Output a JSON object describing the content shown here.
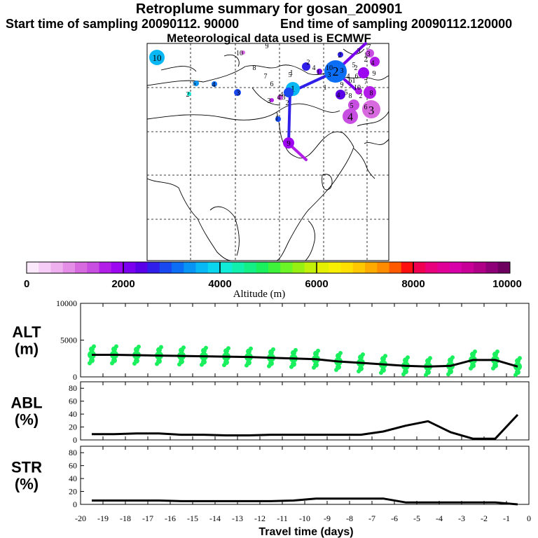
{
  "header": {
    "title": "Retroplume summary for gosan_200901",
    "start_label": "Start time of sampling 20090112. 90000",
    "end_label": "End time of sampling 20090112.120000",
    "met_label": "Meteorological data used is ECMWF"
  },
  "colorbar": {
    "label": "Altitude (m)",
    "ticks": [
      "0",
      "2000",
      "4000",
      "6000",
      "8000",
      "10000"
    ],
    "colors": [
      "#fbe8fb",
      "#f6cdf6",
      "#efb0ef",
      "#e58ee8",
      "#d86ae0",
      "#c74ee0",
      "#b21ee8",
      "#9d06f0",
      "#7c00f0",
      "#5a00e8",
      "#2f1fe8",
      "#1848f0",
      "#0c6ef5",
      "#0794f5",
      "#08b8f5",
      "#0ad6f0",
      "#10ecd8",
      "#12f0ae",
      "#14f086",
      "#1aef5e",
      "#3ef23c",
      "#6cf526",
      "#98f012",
      "#c2f008",
      "#e4f000",
      "#f8f000",
      "#ffe000",
      "#ffc800",
      "#ffaa00",
      "#ff8c00",
      "#ff5a00",
      "#ff1010",
      "#f00050",
      "#e8007c",
      "#e00098",
      "#d800a8",
      "#c80098",
      "#b00088",
      "#8e0078",
      "#6e0060"
    ]
  },
  "map": {
    "numbered_markers": [
      "10",
      "9",
      "8",
      "7",
      "6",
      "5",
      "4",
      "3",
      "2",
      "1"
    ],
    "labels": [
      "10",
      "9",
      "8",
      "7",
      "6",
      "5",
      "4",
      "3",
      "2",
      "1",
      "10",
      "9",
      "8",
      "7",
      "6",
      "5",
      "4",
      "3",
      "2",
      "1",
      "10",
      "9",
      "8",
      "7",
      "6",
      "5",
      "4",
      "3",
      "2",
      "1",
      "4",
      "3",
      "2",
      "1",
      "5",
      "4",
      "3",
      "2",
      "1",
      "4",
      "3",
      "2",
      "1",
      "6",
      "5",
      "4",
      "3",
      "2"
    ]
  },
  "chart_data": [
    {
      "type": "line",
      "name": "ALT",
      "ylabel": "ALT (m)",
      "ylabel_line1": "ALT",
      "ylabel_line2": "(m)",
      "ylim": [
        0,
        10000
      ],
      "yticks": [
        "0",
        "5000",
        "10000"
      ],
      "ytick_values": [
        0,
        5000,
        10000
      ],
      "x": [
        -19.5,
        -18.5,
        -17.5,
        -16.5,
        -15.5,
        -14.5,
        -13.5,
        -12.5,
        -11.5,
        -10.5,
        -9.5,
        -8.5,
        -7.5,
        -6.5,
        -5.5,
        -4.5,
        -3.5,
        -2.5,
        -1.5,
        -0.5
      ],
      "values": [
        3000,
        3000,
        2950,
        2900,
        2850,
        2800,
        2750,
        2700,
        2600,
        2500,
        2400,
        2100,
        1900,
        1700,
        1500,
        1400,
        1500,
        2300,
        2300,
        1400
      ],
      "scatter_color": "#1aef5e"
    },
    {
      "type": "line",
      "name": "ABL",
      "ylabel": "ABL (%)",
      "ylabel_line1": "ABL",
      "ylabel_line2": "(%)",
      "ylim": [
        0,
        90
      ],
      "yticks": [
        "0",
        "20",
        "40",
        "60",
        "80"
      ],
      "ytick_values": [
        0,
        20,
        40,
        60,
        80
      ],
      "x": [
        -19.5,
        -18.5,
        -17.5,
        -16.5,
        -15.5,
        -14.5,
        -13.5,
        -12.5,
        -11.5,
        -10.5,
        -9.5,
        -8.5,
        -7.5,
        -6.5,
        -5.5,
        -4.5,
        -3.5,
        -2.5,
        -1.5,
        -0.5
      ],
      "values": [
        9,
        9,
        10,
        10,
        8,
        8,
        7,
        7,
        8,
        8,
        8,
        8,
        8,
        13,
        22,
        29,
        12,
        2,
        2,
        39
      ]
    },
    {
      "type": "line",
      "name": "STR",
      "ylabel": "STR (%)",
      "ylabel_line1": "STR",
      "ylabel_line2": "(%)",
      "ylim": [
        0,
        90
      ],
      "yticks": [
        "0",
        "20",
        "40",
        "60",
        "80"
      ],
      "ytick_values": [
        0,
        20,
        40,
        60,
        80
      ],
      "x": [
        -19.5,
        -18.5,
        -17.5,
        -16.5,
        -15.5,
        -14.5,
        -13.5,
        -12.5,
        -11.5,
        -10.5,
        -9.5,
        -8.5,
        -7.5,
        -6.5,
        -5.5,
        -4.5,
        -3.5,
        -2.5,
        -1.5,
        -0.5
      ],
      "values": [
        6,
        6,
        6,
        6,
        5,
        5,
        5,
        5,
        5,
        6,
        9,
        9,
        9,
        9,
        3,
        3,
        3,
        3,
        3,
        0
      ]
    }
  ],
  "xaxis": {
    "xlabel": "Travel time (days)",
    "xlim": [
      -20,
      0
    ],
    "tick_labels": [
      "-20",
      "-19",
      "-18",
      "-17",
      "-16",
      "-15",
      "-14",
      "-13",
      "-12",
      "-11",
      "-10",
      "-9",
      "-8",
      "-7",
      "-6",
      "-5",
      "-4",
      "-3",
      "-2",
      "-1",
      "0"
    ],
    "tick_values": [
      -20,
      -19,
      -18,
      -17,
      -16,
      -15,
      -14,
      -13,
      -12,
      -11,
      -10,
      -9,
      -8,
      -7,
      -6,
      -5,
      -4,
      -3,
      -2,
      -1,
      0
    ]
  }
}
